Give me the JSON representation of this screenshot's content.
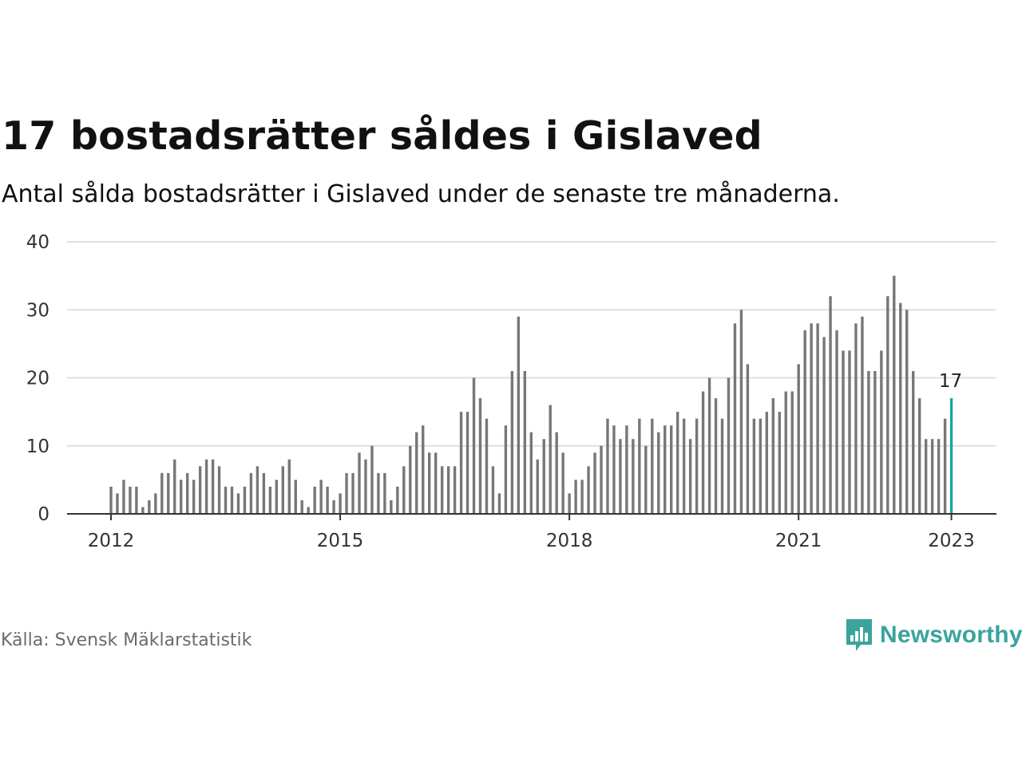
{
  "header": {
    "title": "17 bostadsrätter såldes i Gislaved",
    "subtitle": "Antal sålda bostadsrätter i Gislaved under de senaste tre månaderna."
  },
  "footer": {
    "source": "Källa: Svensk Mäklarstatistik",
    "brand": "Newsworthy"
  },
  "colors": {
    "bar": "#777777",
    "highlight": "#1aa5a0",
    "brand": "#3aa39c",
    "grid": "#e0e0e0"
  },
  "chart_data": {
    "type": "bar",
    "x_start": "2012-01",
    "x_end": "2023-01",
    "frequency": "monthly",
    "ylim": [
      0,
      40
    ],
    "yticks": [
      0,
      10,
      20,
      30,
      40
    ],
    "xticks": [
      {
        "label": "2012",
        "date": "2012-01"
      },
      {
        "label": "2015",
        "date": "2015-01"
      },
      {
        "label": "2018",
        "date": "2018-01"
      },
      {
        "label": "2021",
        "date": "2021-01"
      },
      {
        "label": "2023",
        "date": "2023-01"
      }
    ],
    "values": [
      4,
      3,
      5,
      4,
      4,
      1,
      2,
      3,
      6,
      6,
      8,
      5,
      6,
      5,
      7,
      8,
      8,
      7,
      4,
      4,
      3,
      4,
      6,
      7,
      6,
      4,
      5,
      7,
      8,
      5,
      2,
      1,
      4,
      5,
      4,
      2,
      3,
      6,
      6,
      9,
      8,
      10,
      6,
      6,
      2,
      4,
      7,
      10,
      12,
      13,
      9,
      9,
      7,
      7,
      7,
      15,
      15,
      20,
      17,
      14,
      7,
      3,
      13,
      21,
      29,
      21,
      12,
      8,
      11,
      16,
      12,
      9,
      3,
      5,
      5,
      7,
      9,
      10,
      14,
      13,
      11,
      13,
      11,
      14,
      10,
      14,
      12,
      13,
      13,
      15,
      14,
      11,
      14,
      18,
      20,
      17,
      14,
      20,
      28,
      30,
      22,
      14,
      14,
      15,
      17,
      15,
      18,
      18,
      22,
      27,
      28,
      28,
      26,
      32,
      27,
      24,
      24,
      28,
      29,
      21,
      21,
      24,
      32,
      35,
      31,
      30,
      21,
      17,
      11,
      11,
      11,
      14,
      17
    ],
    "highlight_last": true,
    "annotation": {
      "label": "17",
      "date": "2023-01"
    },
    "grid": true
  }
}
